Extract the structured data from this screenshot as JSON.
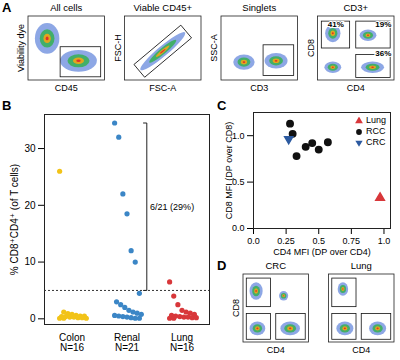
{
  "chart_data": [
    {
      "panel": "A",
      "type": "flow",
      "title": "All cells",
      "x_label": "CD45",
      "y_label": "Viability dye",
      "tick_labels": false
    },
    {
      "type": "flow",
      "title": "Viable CD45+",
      "x_label": "FSC-A",
      "y_label": "FSC-H",
      "tick_labels": false
    },
    {
      "type": "flow",
      "title": "Singlets",
      "x_label": "CD3",
      "y_label": "SSC-A",
      "tick_labels": false
    },
    {
      "type": "flow",
      "title": "CD3+",
      "x_label": "CD4",
      "y_label": "CD8",
      "tick_labels": false,
      "annotations": [
        "41%",
        "19%",
        "36%"
      ]
    },
    {
      "panel": "B",
      "type": "strip",
      "y_label": "% CD8⁺CD4⁺ (of T cells)",
      "categories": [
        "Colon\nN=16",
        "Renal\nN=21",
        "Lung\nN=16"
      ],
      "colors": [
        "#f2c318",
        "#3b86c6",
        "#d8373a"
      ],
      "marker": "circle",
      "values": [
        [
          26,
          1.2,
          0.9,
          0.8,
          0.6,
          0.5,
          0.5,
          0.4,
          0.4,
          0.3,
          0.3,
          0.2,
          0.2,
          0.1,
          0.1,
          0.1
        ],
        [
          34.5,
          32,
          22,
          18.5,
          12,
          10,
          4.5,
          3,
          2.5,
          2,
          1.5,
          1.2,
          1,
          0.8,
          0.6,
          0.5,
          0.4,
          0.3,
          0.2,
          0.1,
          0.1
        ],
        [
          6.5,
          4,
          2.5,
          1.5,
          1.2,
          1,
          0.8,
          0.6,
          0.5,
          0.4,
          0.3,
          0.3,
          0.2,
          0.2,
          0.1,
          0.1
        ]
      ],
      "reference_line": 5,
      "annotations": [
        "6/21 (29%)"
      ],
      "ylim": [
        -1,
        36
      ],
      "yticks": [
        0,
        10,
        20,
        30
      ]
    },
    {
      "panel": "C",
      "type": "scatter",
      "x_label": "CD4 MFI (DP over CD4)",
      "y_label": "CD8 MFI (DP over CD8)",
      "legend": "top-right",
      "series": [
        {
          "name": "Lung",
          "color": "#d8373a",
          "marker": "triangle",
          "x": [
            0.97
          ],
          "y": [
            0.33
          ]
        },
        {
          "name": "RCC",
          "color": "#111111",
          "marker": "circle",
          "x": [
            0.28,
            0.3,
            0.33,
            0.4,
            0.45,
            0.5,
            0.57
          ],
          "y": [
            1.13,
            1.02,
            0.78,
            0.88,
            0.92,
            0.85,
            0.93
          ]
        },
        {
          "name": "CRC",
          "color": "#2c5aa0",
          "marker": "triangle-down",
          "x": [
            0.27
          ],
          "y": [
            0.96
          ]
        }
      ],
      "xlim": [
        0,
        1.05
      ],
      "xticks": [
        {
          "value": 0,
          "label": "0.0"
        },
        0.25,
        0.5,
        0.75,
        {
          "value": 1,
          "label": "1.0"
        }
      ],
      "ylim": [
        0,
        1.25
      ],
      "yticks": [
        {
          "value": 0,
          "label": "0.0"
        },
        0.5,
        {
          "value": 1,
          "label": "1.0"
        }
      ]
    },
    {
      "panel": "D",
      "type": "flow",
      "title": "CRC",
      "x_label": "CD4",
      "y_label": "CD8",
      "tick_labels": false
    },
    {
      "type": "flow",
      "title": "Lung",
      "x_label": "CD4",
      "tick_labels": false
    }
  ]
}
